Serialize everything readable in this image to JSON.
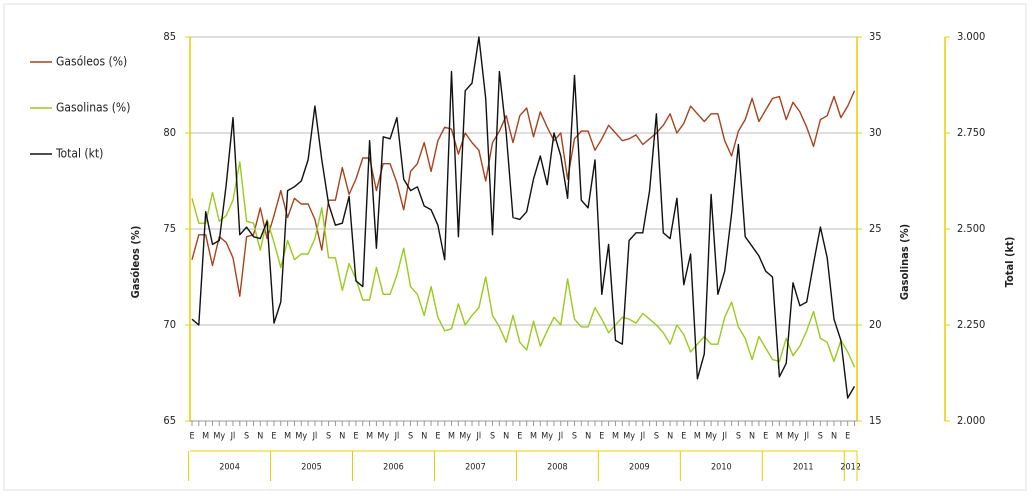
{
  "chart_data": {
    "type": "line",
    "y_label": "Gasóleos (%)",
    "y2_label": "Gasolinas (%)",
    "y3_label": "Total (kt)",
    "categories": [
      "E",
      null,
      "M",
      null,
      "My",
      null,
      "Jl",
      null,
      "S",
      null,
      "N",
      null,
      "E",
      null,
      "M",
      null,
      "My",
      null,
      "Jl",
      null,
      "S",
      null,
      "N",
      null,
      "E",
      null,
      "M",
      null,
      "My",
      null,
      "Jl",
      null,
      "S",
      null,
      "N",
      null,
      "E",
      null,
      "M",
      null,
      "My",
      null,
      "Jl",
      null,
      "S",
      null,
      "N",
      null,
      "E",
      null,
      "M",
      null,
      "My",
      null,
      "Jl",
      null,
      "S",
      null,
      "N",
      null,
      "E",
      null,
      "M",
      null,
      "My",
      null,
      "Jl",
      null,
      "S",
      null,
      "N",
      null,
      "E",
      null,
      "M",
      null,
      "My",
      null,
      "Jl",
      null,
      "S",
      null,
      "N",
      null,
      "E",
      null,
      "M",
      null,
      "My",
      null,
      "Jl",
      null,
      "S",
      null,
      "N",
      null,
      "E",
      null
    ],
    "years": [
      2004,
      2005,
      2006,
      2007,
      2008,
      2009,
      2010,
      2011,
      2012
    ],
    "ylim": [
      65,
      85
    ],
    "yticks": [
      65,
      70,
      75,
      80,
      85
    ],
    "y2lim": [
      15,
      35
    ],
    "y2ticks": [
      15,
      20,
      25,
      30,
      35
    ],
    "y3lim": [
      2000,
      3000
    ],
    "y3ticks": [
      {
        "value": 2000,
        "label": "2.000"
      },
      {
        "value": 2250,
        "label": "2.250"
      },
      {
        "value": 2500,
        "label": "2.500"
      },
      {
        "value": 2750,
        "label": "2.750"
      },
      {
        "value": 3000,
        "label": "3.000"
      }
    ],
    "grid": true,
    "axis_color": "#f0cc00",
    "series": [
      {
        "name": "Gasóleos (%)",
        "color": "#a8431c",
        "axis": "y",
        "values": [
          73.4,
          74.7,
          74.7,
          73.1,
          74.6,
          74.3,
          73.5,
          71.5,
          74.6,
          74.7,
          76.1,
          74.5,
          75.7,
          77.0,
          75.6,
          76.6,
          76.3,
          76.3,
          75.5,
          73.9,
          76.5,
          76.5,
          78.2,
          76.8,
          77.6,
          78.7,
          78.7,
          77.0,
          78.4,
          78.4,
          77.4,
          76.0,
          78.0,
          78.4,
          79.5,
          78.0,
          79.6,
          80.3,
          80.2,
          78.9,
          80.0,
          79.5,
          79.1,
          77.5,
          79.5,
          80.1,
          80.9,
          79.5,
          80.9,
          81.3,
          79.8,
          81.1,
          80.3,
          79.6,
          80.0,
          77.6,
          79.7,
          80.1,
          80.1,
          79.1,
          79.7,
          80.4,
          80.0,
          79.6,
          79.7,
          79.9,
          79.4,
          79.7,
          80.0,
          80.4,
          81.0,
          80.0,
          80.5,
          81.4,
          81.0,
          80.6,
          81.0,
          81.0,
          79.6,
          78.8,
          80.1,
          80.7,
          81.8,
          80.6,
          81.2,
          81.8,
          81.9,
          80.7,
          81.6,
          81.1,
          80.3,
          79.3,
          80.7,
          80.9,
          81.9,
          80.8,
          81.4,
          82.2
        ]
      },
      {
        "name": "Gasolinas (%)",
        "color": "#99cc1a",
        "axis": "y2",
        "values": [
          26.6,
          25.3,
          25.3,
          26.9,
          25.4,
          25.7,
          26.5,
          28.5,
          25.4,
          25.3,
          23.9,
          25.5,
          24.3,
          23.0,
          24.4,
          23.4,
          23.7,
          23.7,
          24.5,
          26.1,
          23.5,
          23.5,
          21.8,
          23.2,
          22.4,
          21.3,
          21.3,
          23.0,
          21.6,
          21.6,
          22.6,
          24.0,
          22.0,
          21.6,
          20.5,
          22.0,
          20.4,
          19.7,
          19.8,
          21.1,
          20.0,
          20.5,
          20.9,
          22.5,
          20.5,
          19.9,
          19.1,
          20.5,
          19.1,
          18.7,
          20.2,
          18.9,
          19.7,
          20.4,
          20.0,
          22.4,
          20.3,
          19.9,
          19.9,
          20.9,
          20.3,
          19.6,
          20.0,
          20.4,
          20.3,
          20.1,
          20.6,
          20.3,
          20.0,
          19.6,
          19.0,
          20.0,
          19.5,
          18.6,
          19.0,
          19.4,
          19.0,
          19.0,
          20.4,
          21.2,
          19.9,
          19.3,
          18.2,
          19.4,
          18.8,
          18.2,
          18.1,
          19.3,
          18.4,
          18.9,
          19.7,
          20.7,
          19.3,
          19.1,
          18.1,
          19.2,
          18.6,
          17.8
        ]
      },
      {
        "name": "Total (kt)",
        "color": "#111111",
        "axis": "y3",
        "values": [
          2265,
          2250,
          2545,
          2460,
          2470,
          2615,
          2790,
          2485,
          2505,
          2480,
          2475,
          2520,
          2255,
          2310,
          2600,
          2610,
          2625,
          2680,
          2820,
          2680,
          2565,
          2510,
          2515,
          2585,
          2365,
          2350,
          2730,
          2450,
          2740,
          2735,
          2790,
          2630,
          2600,
          2610,
          2560,
          2550,
          2510,
          2420,
          2910,
          2480,
          2860,
          2880,
          3000,
          2840,
          2485,
          2910,
          2750,
          2530,
          2525,
          2545,
          2630,
          2690,
          2615,
          2750,
          2690,
          2580,
          2900,
          2575,
          2555,
          2680,
          2330,
          2460,
          2210,
          2200,
          2470,
          2490,
          2490,
          2600,
          2800,
          2490,
          2475,
          2580,
          2355,
          2435,
          2110,
          2175,
          2590,
          2330,
          2390,
          2540,
          2720,
          2480,
          2455,
          2430,
          2390,
          2375,
          2115,
          2150,
          2360,
          2300,
          2310,
          2410,
          2505,
          2425,
          2265,
          2210,
          2060,
          2090
        ]
      }
    ]
  }
}
